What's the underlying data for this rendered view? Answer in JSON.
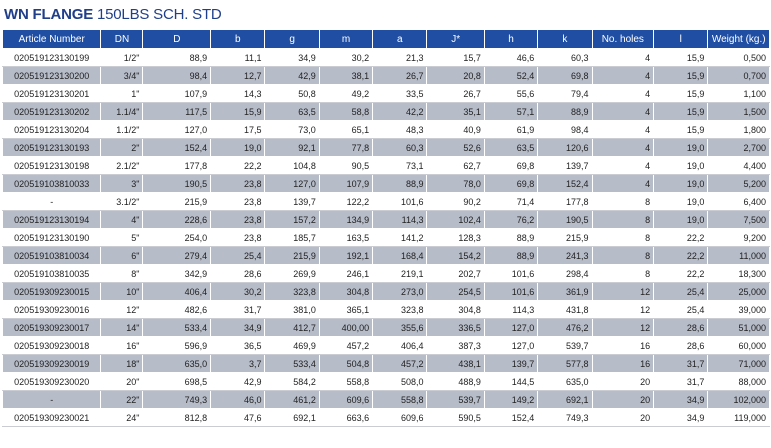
{
  "title": {
    "bold": "WN FLANGE",
    "rest": " 150LBS SCH. STD"
  },
  "columns": [
    "Article Number",
    "DN",
    "D",
    "b",
    "g",
    "m",
    "a",
    "J*",
    "h",
    "k",
    "No. holes",
    "l",
    "Weight (kg.)"
  ],
  "rows": [
    [
      "020519123130199",
      "1/2\"",
      "88,9",
      "11,1",
      "34,9",
      "30,2",
      "21,3",
      "15,7",
      "46,6",
      "60,3",
      "4",
      "15,9",
      "0,500"
    ],
    [
      "020519123130200",
      "3/4\"",
      "98,4",
      "12,7",
      "42,9",
      "38,1",
      "26,7",
      "20,8",
      "52,4",
      "69,8",
      "4",
      "15,9",
      "0,700"
    ],
    [
      "020519123130201",
      "1\"",
      "107,9",
      "14,3",
      "50,8",
      "49,2",
      "33,5",
      "26,7",
      "55,6",
      "79,4",
      "4",
      "15,9",
      "1,100"
    ],
    [
      "020519123130202",
      "1.1/4\"",
      "117,5",
      "15,9",
      "63,5",
      "58,8",
      "42,2",
      "35,1",
      "57,1",
      "88,9",
      "4",
      "15,9",
      "1,500"
    ],
    [
      "020519123130204",
      "1.1/2\"",
      "127,0",
      "17,5",
      "73,0",
      "65,1",
      "48,3",
      "40,9",
      "61,9",
      "98,4",
      "4",
      "15,9",
      "1,800"
    ],
    [
      "020519123130193",
      "2\"",
      "152,4",
      "19,0",
      "92,1",
      "77,8",
      "60,3",
      "52,6",
      "63,5",
      "120,6",
      "4",
      "19,0",
      "2,700"
    ],
    [
      "020519123130198",
      "2.1/2\"",
      "177,8",
      "22,2",
      "104,8",
      "90,5",
      "73,1",
      "62,7",
      "69,8",
      "139,7",
      "4",
      "19,0",
      "4,400"
    ],
    [
      "020519103810033",
      "3\"",
      "190,5",
      "23,8",
      "127,0",
      "107,9",
      "88,9",
      "78,0",
      "69,8",
      "152,4",
      "4",
      "19,0",
      "5,200"
    ],
    [
      "-",
      "3.1/2\"",
      "215,9",
      "23,8",
      "139,7",
      "122,2",
      "101,6",
      "90,2",
      "71,4",
      "177,8",
      "8",
      "19,0",
      "6,400"
    ],
    [
      "020519123130194",
      "4\"",
      "228,6",
      "23,8",
      "157,2",
      "134,9",
      "114,3",
      "102,4",
      "76,2",
      "190,5",
      "8",
      "19,0",
      "7,500"
    ],
    [
      "020519123130190",
      "5\"",
      "254,0",
      "23,8",
      "185,7",
      "163,5",
      "141,2",
      "128,3",
      "88,9",
      "215,9",
      "8",
      "22,2",
      "9,200"
    ],
    [
      "020519103810034",
      "6\"",
      "279,4",
      "25,4",
      "215,9",
      "192,1",
      "168,4",
      "154,2",
      "88,9",
      "241,3",
      "8",
      "22,2",
      "11,000"
    ],
    [
      "020519103810035",
      "8\"",
      "342,9",
      "28,6",
      "269,9",
      "246,1",
      "219,1",
      "202,7",
      "101,6",
      "298,4",
      "8",
      "22,2",
      "18,300"
    ],
    [
      "020519309230015",
      "10\"",
      "406,4",
      "30,2",
      "323,8",
      "304,8",
      "273,0",
      "254,5",
      "101,6",
      "361,9",
      "12",
      "25,4",
      "25,000"
    ],
    [
      "020519309230016",
      "12\"",
      "482,6",
      "31,7",
      "381,0",
      "365,1",
      "323,8",
      "304,8",
      "114,3",
      "431,8",
      "12",
      "25,4",
      "39,000"
    ],
    [
      "020519309230017",
      "14\"",
      "533,4",
      "34,9",
      "412,7",
      "400,00",
      "355,6",
      "336,5",
      "127,0",
      "476,2",
      "12",
      "28,6",
      "51,000"
    ],
    [
      "020519309230018",
      "16\"",
      "596,9",
      "36,5",
      "469,9",
      "457,2",
      "406,4",
      "387,3",
      "127,0",
      "539,7",
      "16",
      "28,6",
      "60,000"
    ],
    [
      "020519309230019",
      "18\"",
      "635,0",
      "3,7",
      "533,4",
      "504,8",
      "457,2",
      "438,1",
      "139,7",
      "577,8",
      "16",
      "31,7",
      "71,000"
    ],
    [
      "020519309230020",
      "20\"",
      "698,5",
      "42,9",
      "584,2",
      "558,8",
      "508,0",
      "488,9",
      "144,5",
      "635,0",
      "20",
      "31,7",
      "88,000"
    ],
    [
      "-",
      "22\"",
      "749,3",
      "46,0",
      "461,2",
      "609,6",
      "558,8",
      "539,7",
      "149,2",
      "692,1",
      "20",
      "34,9",
      "102,000"
    ],
    [
      "020519309230021",
      "24\"",
      "812,8",
      "47,6",
      "692,1",
      "663,6",
      "609,6",
      "590,5",
      "152,4",
      "749,3",
      "20",
      "34,9",
      "119,000"
    ]
  ]
}
